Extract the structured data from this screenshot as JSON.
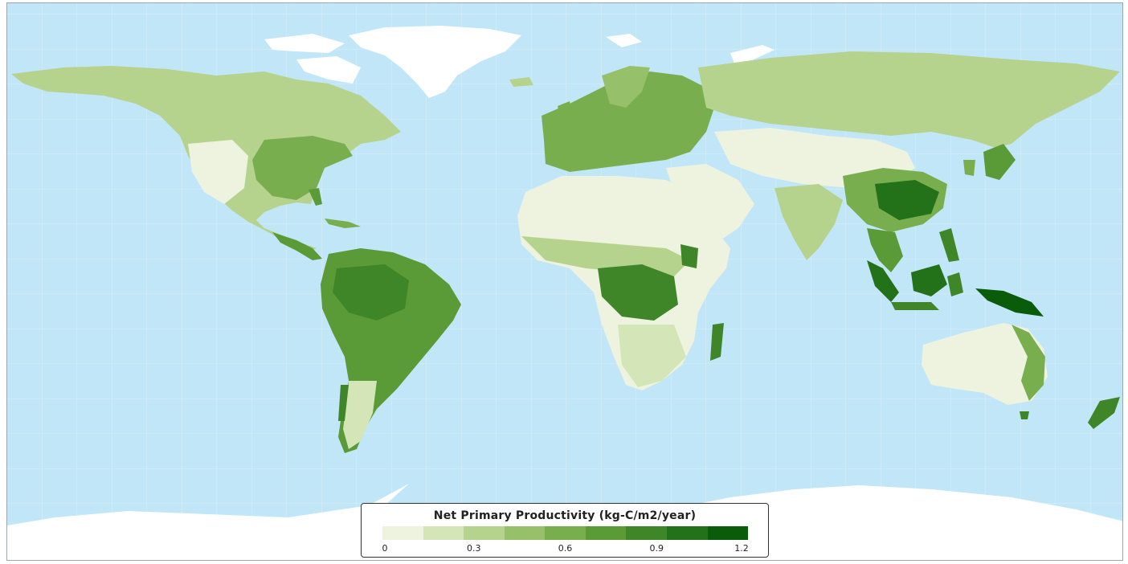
{
  "legend": {
    "title": "Net Primary Productivity (kg-C/m2/year)",
    "ticks": [
      {
        "label": "0",
        "value": 0.0
      },
      {
        "label": "0.3",
        "value": 0.3
      },
      {
        "label": "0.6",
        "value": 0.6
      },
      {
        "label": "0.9",
        "value": 0.9
      },
      {
        "label": "1.2",
        "value": 1.2
      }
    ],
    "range": [
      0,
      1.2
    ],
    "colors": [
      "#eef3df",
      "#d4e5b7",
      "#b6d38d",
      "#97c06a",
      "#79ae4e",
      "#5a9a37",
      "#3e8628",
      "#237118",
      "#0a5b0a"
    ]
  },
  "map_colors": {
    "ocean": "#c1e6f8",
    "ice": "#ffffff",
    "desert": "#eef3df",
    "graticule": "#d9eef9",
    "border": "#ffffff"
  }
}
